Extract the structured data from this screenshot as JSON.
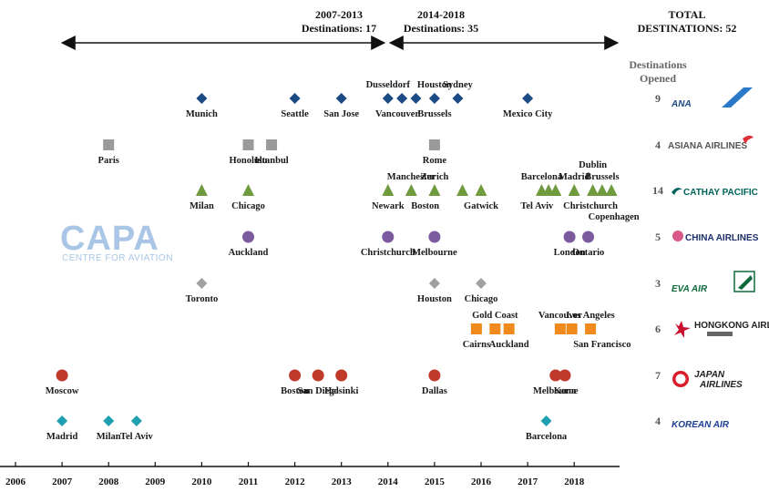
{
  "header": {
    "period1": {
      "line1": "2007-2013",
      "line2": "Destinations: 17"
    },
    "period2": {
      "line1": "2014-2018",
      "line2": "Destinations: 35"
    },
    "total": {
      "line1": "TOTAL",
      "line2": "DESTINATIONS: 52"
    },
    "opened": {
      "line1": "Destinations",
      "line2": "Opened"
    }
  },
  "watermark": {
    "big": "CAPA",
    "small": "CENTRE FOR AVIATION"
  },
  "chart_data": {
    "type": "scatter",
    "x_ticks": [
      2006,
      2007,
      2008,
      2009,
      2010,
      2011,
      2012,
      2013,
      2014,
      2015,
      2016,
      2017,
      2018
    ],
    "xlim": [
      2006,
      2019
    ],
    "grid": false,
    "legend": "right",
    "series": [
      {
        "name": "ANA",
        "count": "9",
        "color": "#1c4a84",
        "marker": "diamond",
        "points": [
          {
            "x": 2010.0,
            "label": "Munich",
            "pos": "below"
          },
          {
            "x": 2012.0,
            "label": "Seattle",
            "pos": "below"
          },
          {
            "x": 2013.0,
            "label": "San Jose",
            "pos": "below"
          },
          {
            "x": 2014.0,
            "label": "Dusseldorf",
            "pos": "above"
          },
          {
            "x": 2014.3,
            "label": "",
            "pos": "none"
          },
          {
            "x": 2014.6,
            "label": "",
            "pos": "none"
          },
          {
            "x": 2015.0,
            "label": "Houston",
            "pos": "above"
          },
          {
            "x": 2015.5,
            "label": "Sydney",
            "pos": "above"
          },
          {
            "x": 2017.0,
            "label": "Mexico City",
            "pos": "below"
          }
        ],
        "extra_labels": [
          {
            "x": 2014.2,
            "label": "Vancouver",
            "pos": "below"
          },
          {
            "x": 2015.0,
            "label": "Brussels",
            "pos": "below"
          }
        ]
      },
      {
        "name": "ASIANA AIRLINES",
        "count": "4",
        "color": "#9a9a9a",
        "marker": "square",
        "points": [
          {
            "x": 2008.0,
            "label": "Paris",
            "pos": "below"
          },
          {
            "x": 2011.0,
            "label": "Honolulu",
            "pos": "below"
          },
          {
            "x": 2011.5,
            "label": "Istanbul",
            "pos": "below"
          },
          {
            "x": 2015.0,
            "label": "Rome",
            "pos": "below"
          }
        ]
      },
      {
        "name": "CATHAY PACIFIC",
        "count": "14",
        "color": "#6f9a3e",
        "marker": "triangle",
        "points": [
          {
            "x": 2010.0,
            "label": "Milan",
            "pos": "below"
          },
          {
            "x": 2011.0,
            "label": "Chicago",
            "pos": "below"
          },
          {
            "x": 2014.0,
            "label": "Newark",
            "pos": "below"
          },
          {
            "x": 2014.5,
            "label": "Manchester",
            "pos": "above"
          },
          {
            "x": 2015.0,
            "label": "Zurich",
            "pos": "above"
          },
          {
            "x": 2015.6,
            "label": "",
            "pos": "none"
          },
          {
            "x": 2016.0,
            "label": "Gatwick",
            "pos": "below"
          },
          {
            "x": 2017.3,
            "label": "Barcelona",
            "pos": "above"
          },
          {
            "x": 2017.45,
            "label": "",
            "pos": "none"
          },
          {
            "x": 2017.6,
            "label": "",
            "pos": "none"
          },
          {
            "x": 2018.0,
            "label": "Madrid",
            "pos": "above"
          },
          {
            "x": 2018.4,
            "label": "Dublin",
            "pos": "above2"
          },
          {
            "x": 2018.6,
            "label": "Brussels",
            "pos": "above"
          },
          {
            "x": 2018.8,
            "label": "",
            "pos": "none"
          }
        ],
        "extra_labels": [
          {
            "x": 2014.8,
            "label": "Boston",
            "pos": "below"
          },
          {
            "x": 2017.2,
            "label": "Tel Aviv",
            "pos": "below"
          },
          {
            "x": 2018.35,
            "label": "Christchurch",
            "pos": "below"
          },
          {
            "x": 2018.85,
            "label": "Copenhagen",
            "pos": "below2"
          }
        ]
      },
      {
        "name": "CHINA AIRLINES",
        "count": "5",
        "color": "#7b5a9e",
        "marker": "circle",
        "points": [
          {
            "x": 2011.0,
            "label": "Auckland",
            "pos": "below"
          },
          {
            "x": 2014.0,
            "label": "Christchurch",
            "pos": "below"
          },
          {
            "x": 2015.0,
            "label": "Melbourne",
            "pos": "below"
          },
          {
            "x": 2017.9,
            "label": "London",
            "pos": "below"
          },
          {
            "x": 2018.3,
            "label": "Ontario",
            "pos": "below"
          }
        ]
      },
      {
        "name": "EVA AIR",
        "count": "3",
        "color": "#a0a0a0",
        "marker": "diamond",
        "points": [
          {
            "x": 2010.0,
            "label": "Toronto",
            "pos": "below"
          },
          {
            "x": 2015.0,
            "label": "Houston",
            "pos": "below"
          },
          {
            "x": 2016.0,
            "label": "Chicago",
            "pos": "below"
          }
        ]
      },
      {
        "name": "HONGKONG AIRLINES",
        "count": "6",
        "color": "#f08a1c",
        "marker": "square",
        "points": [
          {
            "x": 2015.9,
            "label": "Cairns",
            "pos": "below"
          },
          {
            "x": 2016.3,
            "label": "Gold Coast",
            "pos": "above"
          },
          {
            "x": 2016.6,
            "label": "Auckland",
            "pos": "below"
          },
          {
            "x": 2017.7,
            "label": "Vancouver",
            "pos": "above"
          },
          {
            "x": 2017.95,
            "label": "",
            "pos": "none"
          },
          {
            "x": 2018.35,
            "label": "Los Angeles",
            "pos": "above"
          }
        ],
        "extra_labels": [
          {
            "x": 2018.6,
            "label": "San Francisco",
            "pos": "below"
          }
        ]
      },
      {
        "name": "JAPAN AIRLINES",
        "count": "7",
        "color": "#c0392b",
        "marker": "circle",
        "points": [
          {
            "x": 2007.0,
            "label": "Moscow",
            "pos": "below"
          },
          {
            "x": 2012.0,
            "label": "Boston",
            "pos": "below"
          },
          {
            "x": 2012.5,
            "label": "San Diego",
            "pos": "below"
          },
          {
            "x": 2013.0,
            "label": "Helsinki",
            "pos": "below"
          },
          {
            "x": 2015.0,
            "label": "Dallas",
            "pos": "below"
          },
          {
            "x": 2017.6,
            "label": "Melbourne",
            "pos": "below"
          },
          {
            "x": 2017.8,
            "label": "Kona",
            "pos": "below"
          }
        ]
      },
      {
        "name": "KOREAN AIR",
        "count": "4",
        "color": "#1fa0b0",
        "marker": "diamond",
        "points": [
          {
            "x": 2007.0,
            "label": "Madrid",
            "pos": "below"
          },
          {
            "x": 2008.0,
            "label": "Milan",
            "pos": "below"
          },
          {
            "x": 2008.6,
            "label": "Tel Aviv",
            "pos": "below"
          },
          {
            "x": 2017.4,
            "label": "Barcelona",
            "pos": "below"
          }
        ]
      }
    ]
  },
  "airlines": [
    {
      "key": "ana",
      "text": "ANA",
      "color": "#1c4a84"
    },
    {
      "key": "asiana",
      "text": "ASIANA AIRLINES",
      "color": "#555555"
    },
    {
      "key": "cathay",
      "text": "CATHAY PACIFIC",
      "color": "#00645a"
    },
    {
      "key": "china",
      "text": "CHINA AIRLINES",
      "color": "#1c2f6b"
    },
    {
      "key": "eva",
      "text": "EVA AIR",
      "color": "#0f6b3a"
    },
    {
      "key": "hka",
      "text": "HONGKONG AIRLINES",
      "color": "#222222"
    },
    {
      "key": "jal",
      "text": "JAPAN AIRLINES",
      "color": "#222222"
    },
    {
      "key": "korean",
      "text": "KOREAN AIR",
      "color": "#1c3f94"
    }
  ]
}
